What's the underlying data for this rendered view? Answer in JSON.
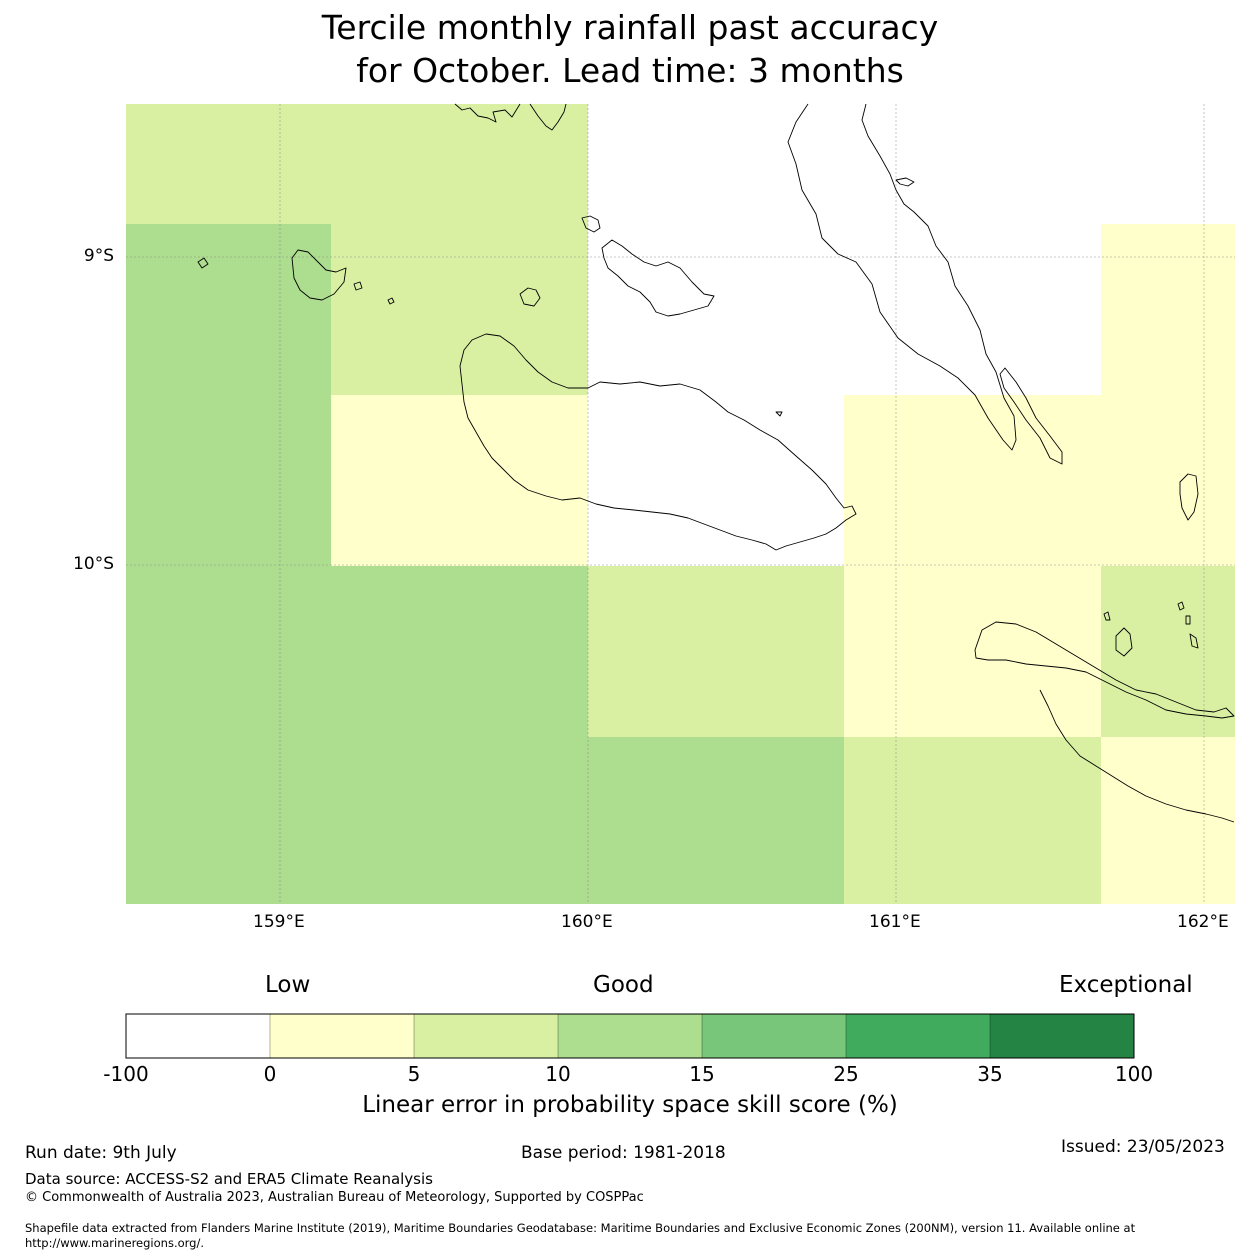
{
  "title": {
    "line1": "Tercile monthly rainfall past accuracy",
    "line2": "for October. Lead time: 3 months"
  },
  "map": {
    "lon_range": [
      158.5,
      162.1
    ],
    "lat_range": [
      -11.1,
      -8.5
    ],
    "x_ticks": [
      "159°E",
      "160°E",
      "161°E",
      "162°E"
    ],
    "y_ticks": [
      "9°S",
      "10°S"
    ],
    "gridlines": true,
    "cell_colors": {
      "white": "#ffffff",
      "0-5": "#ffffcc",
      "5-10": "#d9f0a3",
      "10-15": "#addd8e"
    }
  },
  "colorbar": {
    "categories": [
      "Low",
      "Good",
      "Exceptional"
    ],
    "tick_labels": [
      "-100",
      "0",
      "5",
      "10",
      "15",
      "25",
      "35",
      "100"
    ],
    "colors": [
      "#ffffff",
      "#ffffcc",
      "#d9f0a3",
      "#addd8e",
      "#78c679",
      "#41ab5d",
      "#238443"
    ],
    "label": "Linear error in probability space skill score (%)"
  },
  "footer": {
    "run_date": "Run date: 9th July",
    "base_period": "Base period: 1981-2018",
    "issued": "Issued: 23/05/2023",
    "data_source": "Data source: ACCESS-S2 and ERA5 Climate Reanalysis",
    "copyright": "© Commonwealth of Australia 2023, Australian Bureau of Meteorology, Supported by COSPPac",
    "shapefile_line1": "Shapefile data extracted from Flanders Marine Institute (2019), Maritime Boundaries Geodatabase: Maritime Boundaries and Exclusive Economic Zones (200NM), version 11. Available online at",
    "shapefile_line2": "http://www.marineregions.org/."
  }
}
